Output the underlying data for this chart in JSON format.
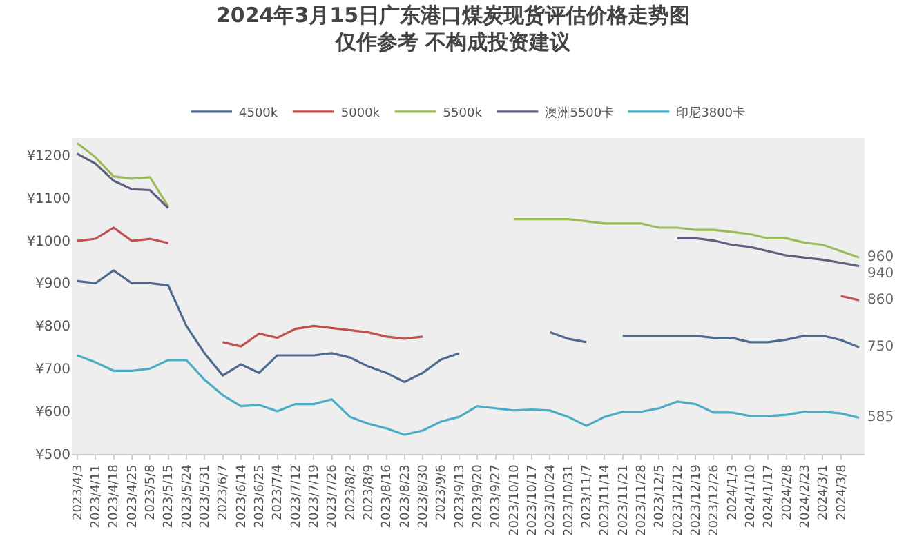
{
  "chart_data": {
    "type": "line",
    "title": "2024年3月15日广东港口煤炭现货评估价格走势图",
    "subtitle": "仅作参考 不构成投资建议",
    "categories": [
      "2023/4/3",
      "2023/4/11",
      "2023/4/18",
      "2023/4/25",
      "2023/5/8",
      "2023/5/15",
      "2023/5/24",
      "2023/5/31",
      "2023/6/7",
      "2023/6/14",
      "2023/6/25",
      "2023/7/4",
      "2023/7/12",
      "2023/7/19",
      "2023/7/26",
      "2023/8/2",
      "2023/8/9",
      "2023/8/16",
      "2023/8/23",
      "2023/8/30",
      "2023/9/6",
      "2023/9/13",
      "2023/9/20",
      "2023/9/27",
      "2023/10/10",
      "2023/10/17",
      "2023/10/24",
      "2023/10/31",
      "2023/11/7",
      "2023/11/14",
      "2023/11/21",
      "2023/11/28",
      "2023/12/5",
      "2023/12/12",
      "2023/12/19",
      "2023/12/26",
      "2024/1/3",
      "2024/1/10",
      "2024/1/17",
      "2024/2/8",
      "2024/2/23",
      "2024/3/1",
      "2024/3/8",
      null
    ],
    "series": [
      {
        "name": "4500k",
        "color": "#4f6a8f",
        "values": [
          905,
          900,
          930,
          900,
          900,
          895,
          800,
          736,
          684,
          710,
          690,
          731,
          731,
          731,
          736,
          726,
          705,
          690,
          669,
          690,
          721,
          736,
          null,
          null,
          null,
          null,
          785,
          770,
          762,
          null,
          777,
          777,
          777,
          777,
          777,
          772,
          772,
          762,
          762,
          768,
          777,
          777,
          767,
          750
        ],
        "value_labels": [
          null,
          null,
          null,
          null,
          null,
          null,
          null,
          null,
          null,
          null,
          null,
          null,
          null,
          null,
          null,
          null,
          null,
          null,
          null,
          null,
          null,
          null,
          null,
          null,
          null,
          null,
          null,
          null,
          null,
          null,
          null,
          null,
          null,
          null,
          null,
          null,
          null,
          null,
          null,
          null,
          null,
          null,
          null,
          "750"
        ]
      },
      {
        "name": "5000k",
        "color": "#c0504d",
        "values": [
          999,
          1004,
          1030,
          999,
          1004,
          994,
          null,
          null,
          762,
          752,
          782,
          772,
          793,
          800,
          795,
          790,
          785,
          775,
          770,
          775,
          null,
          null,
          null,
          null,
          null,
          null,
          null,
          null,
          null,
          null,
          null,
          null,
          null,
          null,
          null,
          null,
          null,
          null,
          null,
          null,
          null,
          null,
          870,
          860
        ],
        "value_labels": [
          null,
          null,
          null,
          null,
          null,
          null,
          null,
          null,
          null,
          null,
          null,
          null,
          null,
          null,
          null,
          null,
          null,
          null,
          null,
          null,
          null,
          null,
          null,
          null,
          null,
          null,
          null,
          null,
          null,
          null,
          null,
          null,
          null,
          null,
          null,
          null,
          null,
          null,
          null,
          null,
          null,
          null,
          null,
          "860"
        ]
      },
      {
        "name": "5500k",
        "color": "#9bbb59",
        "values": [
          1228,
          1195,
          1150,
          1145,
          1148,
          1080,
          null,
          null,
          null,
          null,
          null,
          null,
          null,
          null,
          null,
          null,
          null,
          null,
          null,
          null,
          null,
          null,
          null,
          null,
          1050,
          1050,
          1050,
          1050,
          1045,
          1040,
          1040,
          1040,
          1030,
          1030,
          1025,
          1025,
          1020,
          1015,
          1005,
          1005,
          995,
          990,
          975,
          960
        ],
        "value_labels": [
          null,
          null,
          null,
          null,
          null,
          null,
          null,
          null,
          null,
          null,
          null,
          null,
          null,
          null,
          null,
          null,
          null,
          null,
          null,
          null,
          null,
          null,
          null,
          null,
          null,
          null,
          null,
          null,
          null,
          null,
          null,
          null,
          null,
          null,
          null,
          null,
          null,
          null,
          null,
          null,
          null,
          null,
          null,
          "960"
        ]
      },
      {
        "name": "澳洲5500卡",
        "color": "#5f5f7f",
        "values": [
          1203,
          1180,
          1140,
          1120,
          1118,
          1076,
          null,
          null,
          null,
          null,
          null,
          null,
          null,
          null,
          null,
          null,
          null,
          null,
          null,
          null,
          null,
          null,
          null,
          null,
          null,
          null,
          null,
          null,
          null,
          null,
          null,
          null,
          null,
          1005,
          1005,
          1000,
          990,
          985,
          975,
          965,
          960,
          955,
          948,
          940
        ],
        "value_labels": [
          null,
          null,
          null,
          null,
          null,
          null,
          null,
          null,
          null,
          null,
          null,
          null,
          null,
          null,
          null,
          null,
          null,
          null,
          null,
          null,
          null,
          null,
          null,
          null,
          null,
          null,
          null,
          null,
          null,
          null,
          null,
          null,
          null,
          null,
          null,
          null,
          null,
          null,
          null,
          null,
          null,
          null,
          null,
          "940"
        ]
      },
      {
        "name": "印尼3800卡",
        "color": "#4bacc6",
        "values": [
          731,
          715,
          695,
          695,
          700,
          720,
          720,
          674,
          638,
          612,
          615,
          600,
          617,
          617,
          628,
          587,
          571,
          560,
          545,
          555,
          576,
          587,
          612,
          607,
          602,
          604,
          602,
          587,
          566,
          587,
          599,
          599,
          607,
          623,
          617,
          597,
          597,
          589,
          589,
          592,
          599,
          599,
          595,
          585
        ],
        "value_labels": [
          null,
          null,
          null,
          null,
          null,
          null,
          null,
          null,
          null,
          null,
          null,
          null,
          null,
          null,
          null,
          null,
          null,
          null,
          null,
          null,
          null,
          null,
          null,
          null,
          null,
          null,
          null,
          null,
          null,
          null,
          null,
          null,
          null,
          null,
          null,
          null,
          null,
          null,
          null,
          null,
          null,
          null,
          null,
          "585"
        ]
      }
    ],
    "ylim": [
      500,
      1240
    ],
    "yticks": [
      {
        "value": 500,
        "label": "¥500"
      },
      {
        "value": 600,
        "label": "¥600"
      },
      {
        "value": 700,
        "label": "¥700"
      },
      {
        "value": 800,
        "label": "¥800"
      },
      {
        "value": 900,
        "label": "¥900"
      },
      {
        "value": 1000,
        "label": "¥1000"
      },
      {
        "value": 1100,
        "label": "¥1100"
      },
      {
        "value": 1200,
        "label": "¥1200"
      }
    ],
    "grid": false,
    "legend": "top",
    "marker": "none",
    "line_style": "solid"
  }
}
